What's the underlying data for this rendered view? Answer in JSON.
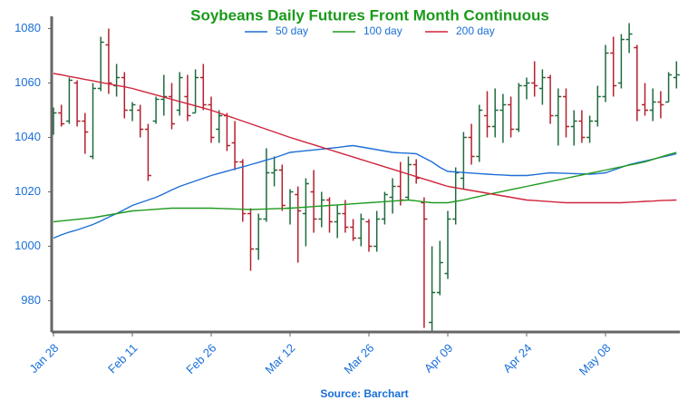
{
  "chart_data": {
    "type": "ohlc",
    "title": "Soybeans Daily Futures Front Month Continuous",
    "source": "Source: Barchart",
    "categories": [
      "Jan 28",
      null,
      null,
      null,
      null,
      null,
      null,
      null,
      null,
      null,
      "Feb 11",
      null,
      null,
      null,
      null,
      null,
      null,
      null,
      null,
      null,
      "Feb 26",
      null,
      null,
      null,
      null,
      null,
      null,
      null,
      null,
      null,
      "Mar 12",
      null,
      null,
      null,
      null,
      null,
      null,
      null,
      null,
      null,
      "Mar 26",
      null,
      null,
      null,
      null,
      null,
      null,
      null,
      null,
      null,
      "Apr 09",
      null,
      null,
      null,
      null,
      null,
      null,
      null,
      null,
      null,
      "Apr 24",
      null,
      null,
      null,
      null,
      null,
      null,
      null,
      null,
      null,
      "May 08",
      null,
      null,
      null,
      null,
      null,
      null,
      null,
      null,
      null
    ],
    "open": [
      1042,
      1049,
      1046,
      1060,
      1046,
      1033,
      1058,
      1074,
      1059,
      1062,
      1050,
      1050,
      1043,
      1046,
      1054,
      1055,
      1050,
      1055,
      1049,
      1062,
      1052,
      1043,
      1048,
      1038,
      1031,
      1012,
      999,
      1010,
      1027,
      1028,
      1014,
      1019,
      1012,
      1020,
      1010,
      1017,
      1009,
      1012,
      1007,
      1003,
      1009,
      1000,
      1010,
      1018,
      1022,
      1018,
      1030,
      1016,
      972,
      983,
      990,
      1010,
      1025,
      1040,
      1033,
      1048,
      1044,
      1050,
      1052,
      1043,
      1059,
      1060,
      1058,
      1062,
      1048,
      1055,
      1044,
      1046,
      1040,
      1046,
      1055,
      1071,
      1060,
      1076,
      1073,
      1052,
      1050,
      1053,
      1053,
      1062
    ],
    "high": [
      1051,
      1052,
      1062,
      1061,
      1049,
      1060,
      1077,
      1080,
      1067,
      1064,
      1053,
      1052,
      1045,
      1055,
      1063,
      1060,
      1064,
      1063,
      1065,
      1067,
      1055,
      1050,
      1049,
      1046,
      1032,
      1014,
      1012,
      1036,
      1033,
      1030,
      1021,
      1022,
      1025,
      1028,
      1020,
      1018,
      1015,
      1017,
      1010,
      1012,
      1010,
      1013,
      1020,
      1025,
      1031,
      1033,
      1032,
      1018,
      1000,
      1002,
      1013,
      1029,
      1042,
      1045,
      1052,
      1057,
      1058,
      1056,
      1055,
      1060,
      1062,
      1068,
      1065,
      1063,
      1058,
      1058,
      1050,
      1050,
      1048,
      1059,
      1074,
      1077,
      1078,
      1082,
      1074,
      1060,
      1058,
      1057,
      1064,
      1068
    ],
    "low": [
      1041,
      1044,
      1045,
      1044,
      1034,
      1032,
      1057,
      1056,
      1055,
      1047,
      1046,
      1040,
      1024,
      1045,
      1048,
      1043,
      1048,
      1046,
      1049,
      1050,
      1038,
      1038,
      1035,
      1028,
      1009,
      991,
      995,
      1009,
      1022,
      1013,
      1008,
      994,
      1000,
      1005,
      1007,
      1005,
      1003,
      1005,
      1002,
      1000,
      998,
      998,
      1008,
      1012,
      1015,
      1017,
      1023,
      970,
      969,
      982,
      988,
      1008,
      1021,
      1030,
      1031,
      1040,
      1040,
      1038,
      1040,
      1042,
      1054,
      1055,
      1052,
      1045,
      1037,
      1040,
      1037,
      1038,
      1038,
      1044,
      1053,
      1055,
      1058,
      1071,
      1046,
      1048,
      1046,
      1047,
      1053,
      1058
    ],
    "close": [
      1049,
      1045,
      1061,
      1046,
      1042,
      1058,
      1075,
      1060,
      1062,
      1050,
      1052,
      1043,
      1026,
      1054,
      1055,
      1045,
      1062,
      1048,
      1062,
      1052,
      1040,
      1048,
      1037,
      1031,
      1012,
      999,
      1010,
      1027,
      1028,
      1015,
      1020,
      1013,
      1023,
      1010,
      1017,
      1009,
      1012,
      1007,
      1003,
      1010,
      1000,
      1010,
      1019,
      1022,
      1017,
      1030,
      1025,
      1010,
      983,
      994,
      1010,
      1027,
      1040,
      1033,
      1050,
      1044,
      1050,
      1052,
      1043,
      1059,
      1060,
      1059,
      1062,
      1048,
      1055,
      1044,
      1046,
      1040,
      1046,
      1055,
      1071,
      1059,
      1076,
      1078,
      1050,
      1050,
      1053,
      1052,
      1063,
      1063
    ],
    "up_color": "#1e6b3c",
    "down_color": "#b3202e",
    "series": [
      {
        "name": "50 day",
        "color": "#1f6fd6",
        "values": [
          1003,
          1004.2,
          1005.2,
          1006,
          1007,
          1008,
          1009.3,
          1010.7,
          1012,
          1013.5,
          1015,
          1016,
          1017,
          1018,
          1019.3,
          1020.7,
          1022,
          1023,
          1024,
          1025,
          1026,
          1026.8,
          1027.6,
          1028.4,
          1029.2,
          1030,
          1030.8,
          1031.7,
          1032.5,
          1033.5,
          1034.5,
          1034.8,
          1035.1,
          1035.4,
          1035.7,
          1036,
          1036.3,
          1036.7,
          1037,
          1036.5,
          1036,
          1035.5,
          1035,
          1034.5,
          1034.3,
          1034.2,
          1034,
          1032.5,
          1031,
          1029,
          1027.5,
          1027.3,
          1027.1,
          1026.9,
          1026.7,
          1026.5,
          1026.3,
          1026.2,
          1026,
          1026,
          1026,
          1026.3,
          1026.7,
          1027,
          1026.9,
          1026.8,
          1026.7,
          1026.6,
          1026.5,
          1026.7,
          1027,
          1028,
          1029,
          1030,
          1030.7,
          1031.3,
          1032,
          1032.7,
          1033.3,
          1034
        ]
      },
      {
        "name": "100 day",
        "color": "#1f9a1f",
        "values": [
          1009,
          1009.3,
          1009.6,
          1009.9,
          1010.2,
          1010.5,
          1011,
          1011.5,
          1012,
          1012.5,
          1013,
          1013.2,
          1013.4,
          1013.6,
          1013.8,
          1014,
          1014,
          1014,
          1014,
          1014,
          1014,
          1013.9,
          1013.8,
          1013.7,
          1013.6,
          1013.5,
          1013.6,
          1013.7,
          1013.8,
          1013.9,
          1014,
          1014.2,
          1014.4,
          1014.6,
          1014.8,
          1015,
          1015.2,
          1015.4,
          1015.6,
          1015.8,
          1016,
          1016.2,
          1016.4,
          1016.6,
          1016.8,
          1017,
          1016.7,
          1016.3,
          1016,
          1016,
          1016,
          1016.5,
          1017,
          1017.7,
          1018.3,
          1019,
          1019.6,
          1020.2,
          1020.8,
          1021.4,
          1022,
          1022.6,
          1023.2,
          1023.8,
          1024.4,
          1025,
          1025.6,
          1026.2,
          1026.8,
          1027.4,
          1028,
          1028.6,
          1029.2,
          1029.8,
          1030.4,
          1031,
          1031.9,
          1032.8,
          1033.7,
          1034.5
        ]
      },
      {
        "name": "200 day",
        "color": "#d0243c",
        "values": [
          1063.5,
          1063,
          1062.4,
          1061.9,
          1061.3,
          1060.8,
          1060.2,
          1059.7,
          1059.1,
          1058.6,
          1058,
          1057.2,
          1056.4,
          1055.6,
          1054.8,
          1054,
          1053.2,
          1052.4,
          1051.6,
          1050.8,
          1050,
          1049,
          1048,
          1047,
          1046,
          1045,
          1044,
          1043,
          1042,
          1041,
          1040,
          1039.1,
          1038.2,
          1037.3,
          1036.4,
          1035.5,
          1034.6,
          1033.7,
          1032.8,
          1031.9,
          1031,
          1030.1,
          1029.2,
          1028.3,
          1027.4,
          1026.5,
          1025.6,
          1024.7,
          1023.8,
          1022.9,
          1022,
          1021.5,
          1021,
          1020.5,
          1020,
          1019.5,
          1019,
          1018.5,
          1018,
          1017.5,
          1017,
          1016.8,
          1016.6,
          1016.4,
          1016.2,
          1016,
          1016,
          1016,
          1016,
          1016,
          1016,
          1016,
          1016,
          1016.2,
          1016.3,
          1016.5,
          1016.6,
          1016.8,
          1016.9,
          1017
        ]
      }
    ],
    "ylim": [
      968.5,
      1084.5
    ],
    "yticks": [
      980,
      1000,
      1020,
      1040,
      1060,
      1080
    ],
    "legend": "top"
  }
}
